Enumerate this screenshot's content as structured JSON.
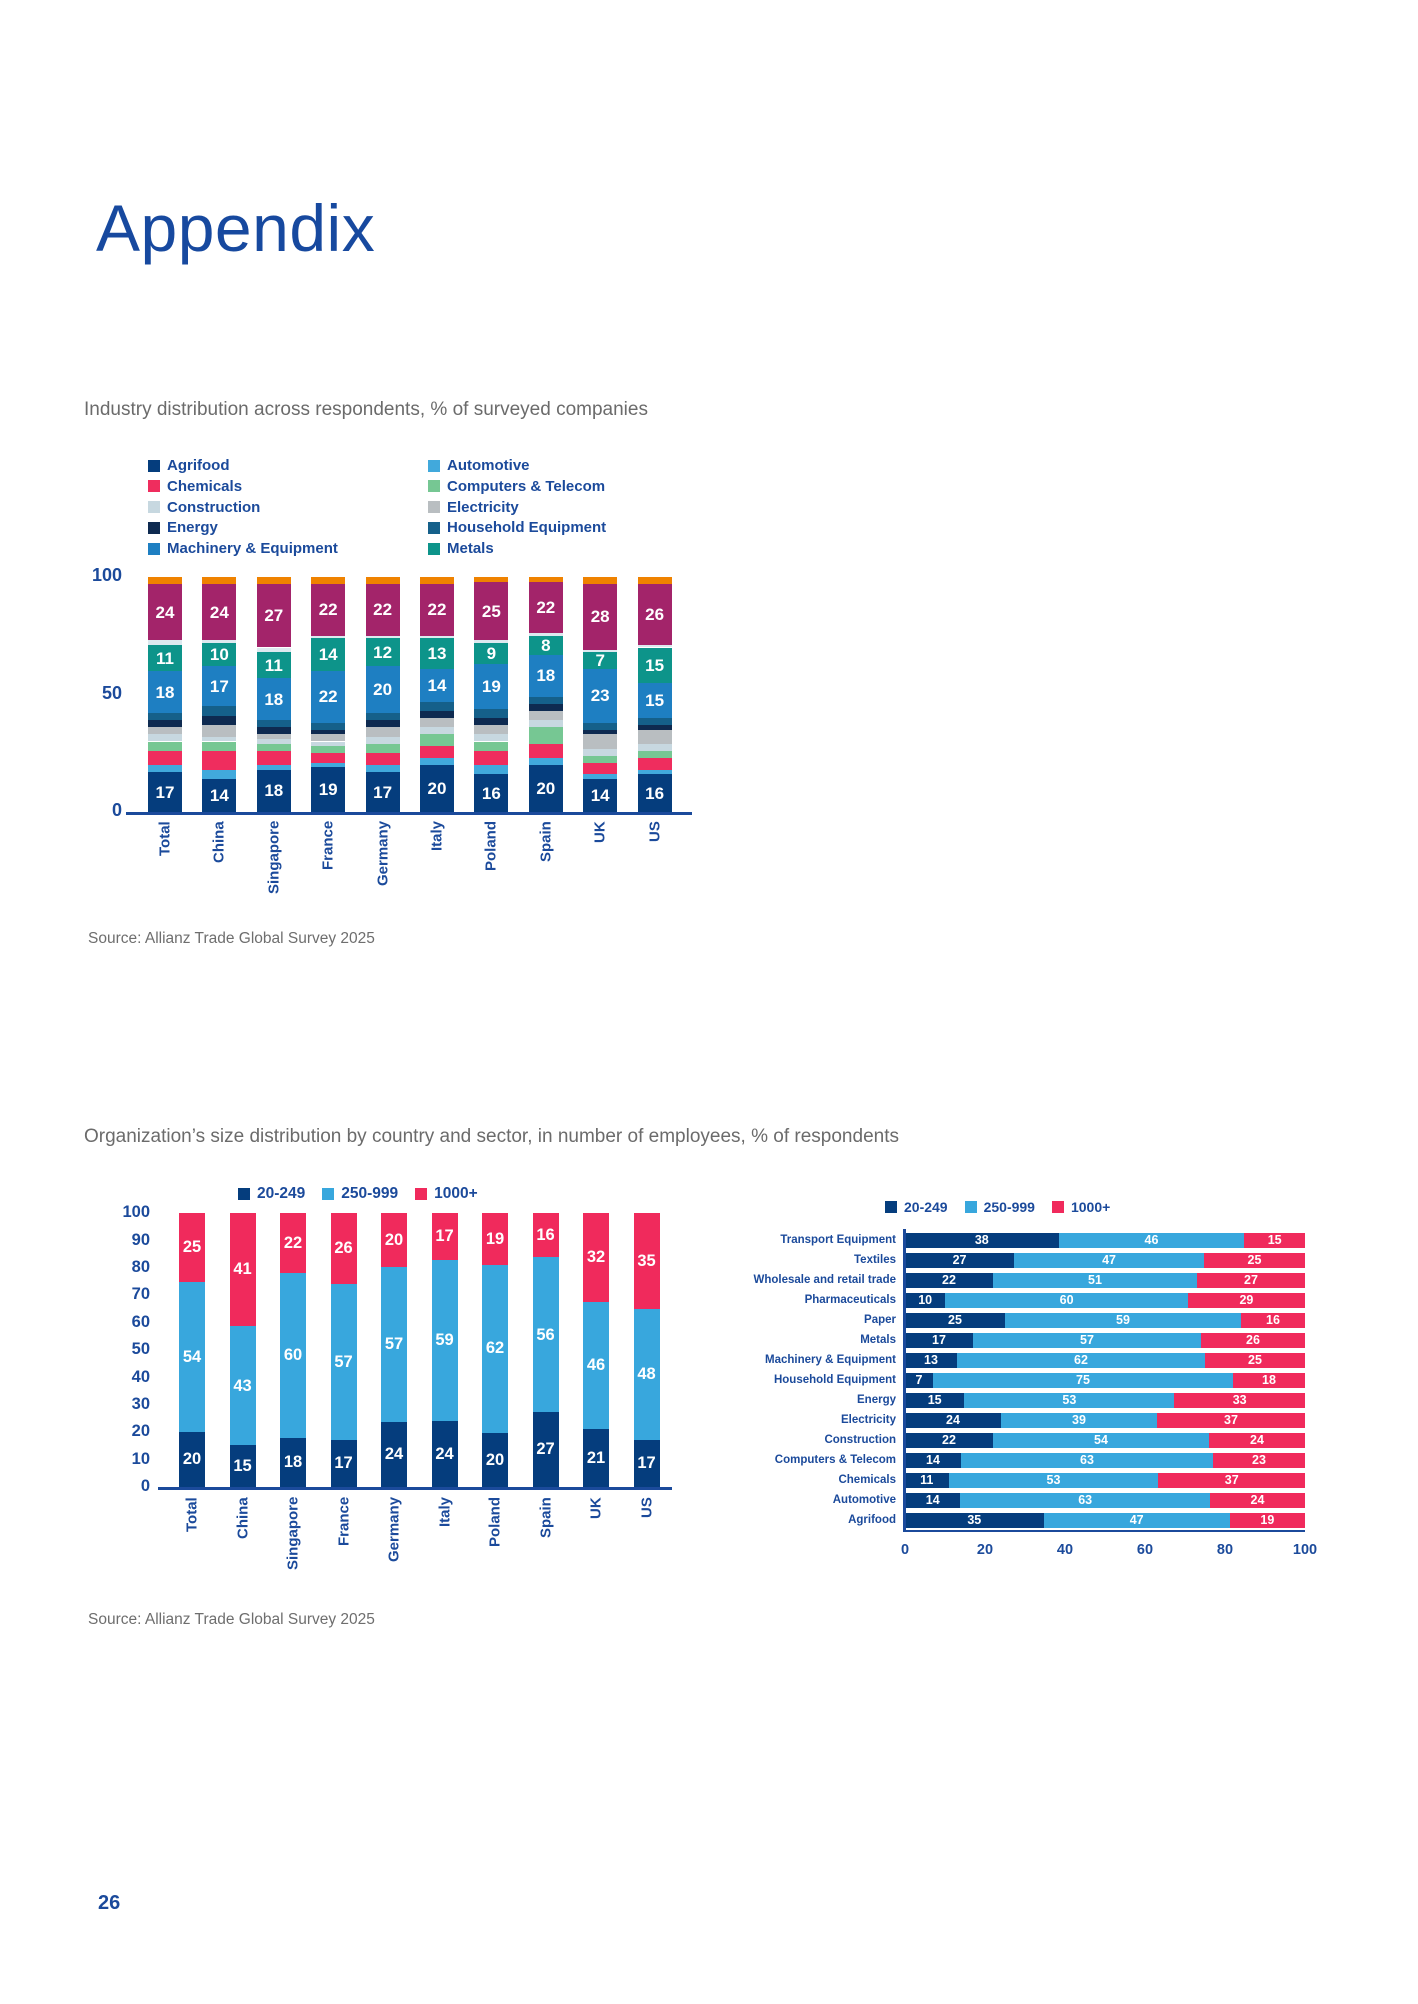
{
  "page": {
    "title": "Appendix",
    "number": "26"
  },
  "colors": {
    "heading_blue": "#17499f",
    "axis_blue": "#1b4a9b",
    "subtitle_gray": "#6b6b6b",
    "navy": "#053d7d",
    "skyblue": "#38a7dd",
    "pink": "#f02a5c",
    "magenta": "#a3246a",
    "orange": "#ef8200",
    "teal": "#0d948a"
  },
  "chart_data": [
    {
      "id": "industry-distribution",
      "type": "bar",
      "variant": "stacked-column",
      "title": "Industry distribution across respondents, % of surveyed companies",
      "source": "Source: Allianz Trade Global Survey 2025",
      "categories": [
        "Total",
        "China",
        "Singapore",
        "France",
        "Germany",
        "Italy",
        "Poland",
        "Spain",
        "UK",
        "US"
      ],
      "yticks": [
        100,
        50,
        0
      ],
      "ylim": [
        0,
        100
      ],
      "legend_columns": [
        [
          "Agrifood",
          "Chemicals",
          "Construction",
          "Energy",
          "Machinery & Equipment"
        ],
        [
          "Automotive",
          "Computers & Telecom",
          "Electricity",
          "Household Equipment",
          "Metals"
        ]
      ],
      "series": [
        {
          "name": "Agrifood",
          "color": "#053d7d",
          "show_label": true,
          "values": [
            17,
            14,
            18,
            19,
            17,
            20,
            16,
            20,
            14,
            16
          ]
        },
        {
          "name": "Automotive",
          "color": "#41a9dc",
          "show_label": false,
          "values": [
            3,
            4,
            2,
            2,
            3,
            3,
            4,
            3,
            2,
            2
          ]
        },
        {
          "name": "Chemicals",
          "color": "#ef2d5e",
          "show_label": false,
          "values": [
            6,
            8,
            6,
            4,
            5,
            5,
            6,
            6,
            5,
            5
          ]
        },
        {
          "name": "Computers & Telecom",
          "color": "#76c793",
          "show_label": false,
          "values": [
            4,
            4,
            3,
            3,
            4,
            5,
            4,
            7,
            3,
            3
          ]
        },
        {
          "name": "Construction",
          "color": "#c7d8e0",
          "show_label": false,
          "values": [
            3,
            2,
            2,
            2,
            3,
            3,
            3,
            3,
            3,
            3
          ]
        },
        {
          "name": "Electricity",
          "color": "#b9bec1",
          "show_label": false,
          "values": [
            3,
            5,
            2,
            3,
            4,
            4,
            4,
            4,
            6,
            6
          ]
        },
        {
          "name": "Energy",
          "color": "#0e2a50",
          "show_label": false,
          "values": [
            3,
            4,
            3,
            2,
            3,
            3,
            3,
            3,
            2,
            2
          ]
        },
        {
          "name": "Household Equipment",
          "color": "#15608a",
          "show_label": false,
          "values": [
            3,
            4,
            3,
            3,
            3,
            4,
            4,
            3,
            3,
            3
          ]
        },
        {
          "name": "Machinery & Equipment",
          "color": "#1e7fc2",
          "show_label": true,
          "values": [
            18,
            17,
            18,
            22,
            20,
            14,
            19,
            18,
            23,
            15
          ]
        },
        {
          "name": "Metals",
          "color": "#0d948a",
          "show_label": true,
          "values": [
            11,
            10,
            11,
            14,
            12,
            13,
            9,
            8,
            7,
            15
          ]
        },
        {
          "name": "unlabeled-pale",
          "color": "#dde9ef",
          "show_label": false,
          "values": [
            2,
            1,
            2,
            1,
            1,
            1,
            1,
            1,
            1,
            1
          ]
        },
        {
          "name": "unlabeled-magenta",
          "color": "#a3246a",
          "show_label": true,
          "values": [
            24,
            24,
            27,
            22,
            22,
            22,
            25,
            22,
            28,
            26
          ]
        },
        {
          "name": "unlabeled-orange",
          "color": "#ef8200",
          "show_label": false,
          "values": [
            3,
            3,
            3,
            3,
            3,
            3,
            2,
            2,
            3,
            3
          ]
        }
      ]
    },
    {
      "id": "size-by-country",
      "type": "bar",
      "variant": "stacked-column",
      "title": "Organization’s size distribution by country and sector, in number of employees, % of respondents",
      "source": "Source: Allianz Trade Global Survey 2025",
      "categories": [
        "Total",
        "China",
        "Singapore",
        "France",
        "Germany",
        "Italy",
        "Poland",
        "Spain",
        "UK",
        "US"
      ],
      "yticks": [
        100,
        90,
        80,
        70,
        60,
        50,
        40,
        30,
        20,
        10,
        0
      ],
      "ylim": [
        0,
        100
      ],
      "series": [
        {
          "name": "20-249",
          "color": "#053d7d",
          "values": [
            20,
            15,
            18,
            17,
            24,
            24,
            20,
            27,
            21,
            17
          ]
        },
        {
          "name": "250-999",
          "color": "#38a7dd",
          "values": [
            54,
            43,
            60,
            57,
            57,
            59,
            62,
            56,
            46,
            48
          ]
        },
        {
          "name": "1000+",
          "color": "#f02a5c",
          "values": [
            25,
            41,
            22,
            26,
            20,
            17,
            19,
            16,
            32,
            35
          ]
        }
      ]
    },
    {
      "id": "size-by-sector",
      "type": "bar",
      "variant": "stacked-bar-horizontal",
      "categories": [
        "Transport Equipment",
        "Textiles",
        "Wholesale and retail trade",
        "Pharmaceuticals",
        "Paper",
        "Metals",
        "Machinery & Equipment",
        "Household Equipment",
        "Energy",
        "Electricity",
        "Construction",
        "Computers & Telecom",
        "Chemicals",
        "Automotive",
        "Agrifood"
      ],
      "xticks": [
        0,
        20,
        40,
        60,
        80,
        100
      ],
      "xlim": [
        0,
        100
      ],
      "series": [
        {
          "name": "20-249",
          "color": "#053d7d",
          "values": [
            38,
            27,
            22,
            10,
            25,
            17,
            13,
            7,
            15,
            24,
            22,
            14,
            11,
            14,
            35
          ]
        },
        {
          "name": "250-999",
          "color": "#38a7dd",
          "values": [
            46,
            47,
            51,
            60,
            59,
            57,
            62,
            75,
            53,
            39,
            54,
            63,
            53,
            63,
            47
          ]
        },
        {
          "name": "1000+",
          "color": "#f02a5c",
          "values": [
            15,
            25,
            27,
            29,
            16,
            26,
            25,
            18,
            33,
            37,
            24,
            23,
            37,
            24,
            19
          ]
        }
      ]
    }
  ]
}
